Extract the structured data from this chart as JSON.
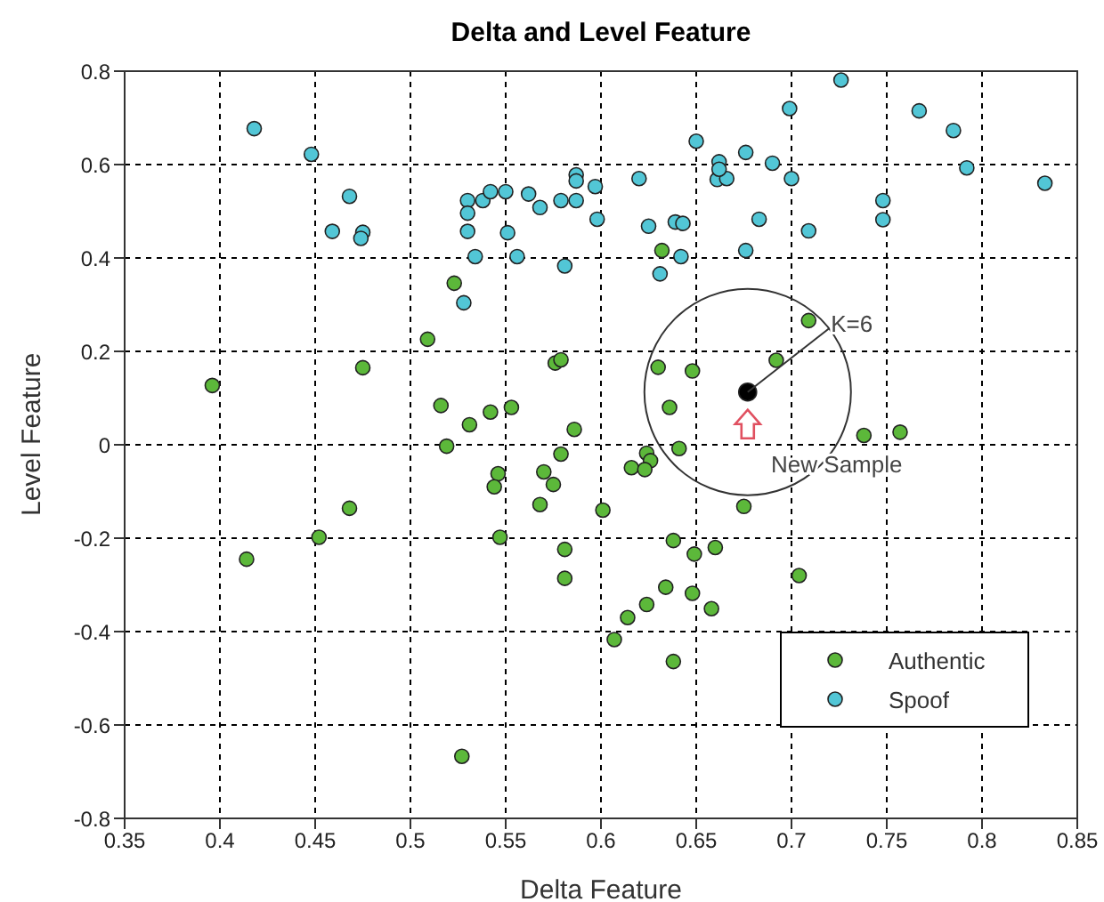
{
  "chart_data": {
    "type": "scatter",
    "title": "Delta and Level Feature",
    "xlabel": "Delta Feature",
    "ylabel": "Level Feature",
    "xlim": [
      0.35,
      0.85
    ],
    "xticks": [
      0.35,
      0.4,
      0.45,
      0.5,
      0.55,
      0.6,
      0.65,
      0.7,
      0.75,
      0.8,
      0.85
    ],
    "ylim": [
      -0.8,
      0.8
    ],
    "yticks": [
      -0.8,
      -0.6,
      -0.4,
      -0.2,
      0,
      0.2,
      0.4,
      0.6,
      0.8
    ],
    "grid": true,
    "legend": "bottom right",
    "marker": "circle",
    "annotations": [
      {
        "text": "K=6",
        "x": 0.677,
        "y": 0.113
      },
      "New Sample"
    ],
    "series": [
      {
        "name": "Authentic",
        "color": "#5cb83a",
        "x": [
          0.396,
          0.475,
          0.509,
          0.523,
          0.516,
          0.531,
          0.542,
          0.553,
          0.576,
          0.579,
          0.586,
          0.519,
          0.579,
          0.546,
          0.544,
          0.57,
          0.575,
          0.568,
          0.468,
          0.452,
          0.547,
          0.414,
          0.581,
          0.581,
          0.527,
          0.632,
          0.709,
          0.692,
          0.63,
          0.648,
          0.636,
          0.738,
          0.757,
          0.641,
          0.624,
          0.626,
          0.616,
          0.623,
          0.601,
          0.675,
          0.638,
          0.649,
          0.66,
          0.704,
          0.634,
          0.648,
          0.624,
          0.658,
          0.614,
          0.607,
          0.638
        ],
        "values": [
          0.127,
          0.165,
          0.226,
          0.346,
          0.084,
          0.043,
          0.07,
          0.08,
          0.175,
          0.182,
          0.033,
          -0.003,
          -0.02,
          -0.062,
          -0.09,
          -0.058,
          -0.085,
          -0.128,
          -0.136,
          -0.198,
          -0.198,
          -0.245,
          -0.224,
          -0.286,
          -0.667,
          0.416,
          0.266,
          0.181,
          0.166,
          0.158,
          0.08,
          0.02,
          0.027,
          -0.008,
          -0.018,
          -0.034,
          -0.049,
          -0.053,
          -0.14,
          -0.132,
          -0.205,
          -0.234,
          -0.22,
          -0.28,
          -0.305,
          -0.318,
          -0.342,
          -0.351,
          -0.37,
          -0.417,
          -0.464
        ]
      },
      {
        "name": "Spoof",
        "color": "#52c6d6",
        "x": [
          0.418,
          0.448,
          0.468,
          0.459,
          0.475,
          0.474,
          0.53,
          0.53,
          0.53,
          0.534,
          0.538,
          0.542,
          0.55,
          0.528,
          0.562,
          0.568,
          0.551,
          0.556,
          0.579,
          0.587,
          0.581,
          0.587,
          0.587,
          0.597,
          0.598,
          0.62,
          0.625,
          0.639,
          0.643,
          0.642,
          0.631,
          0.65,
          0.662,
          0.661,
          0.666,
          0.662,
          0.676,
          0.683,
          0.676,
          0.69,
          0.699,
          0.7,
          0.709,
          0.726,
          0.748,
          0.748,
          0.767,
          0.785,
          0.792,
          0.833
        ],
        "values": [
          0.677,
          0.622,
          0.532,
          0.457,
          0.455,
          0.442,
          0.523,
          0.496,
          0.457,
          0.403,
          0.523,
          0.542,
          0.542,
          0.304,
          0.537,
          0.508,
          0.454,
          0.403,
          0.523,
          0.523,
          0.383,
          0.578,
          0.565,
          0.553,
          0.483,
          0.57,
          0.468,
          0.477,
          0.474,
          0.403,
          0.366,
          0.65,
          0.606,
          0.568,
          0.57,
          0.59,
          0.626,
          0.483,
          0.416,
          0.603,
          0.72,
          0.57,
          0.458,
          0.781,
          0.523,
          0.482,
          0.715,
          0.673,
          0.593,
          0.56
        ]
      },
      {
        "color": "#000000",
        "x": [
          0.677
        ],
        "values": [
          0.113
        ]
      }
    ]
  }
}
